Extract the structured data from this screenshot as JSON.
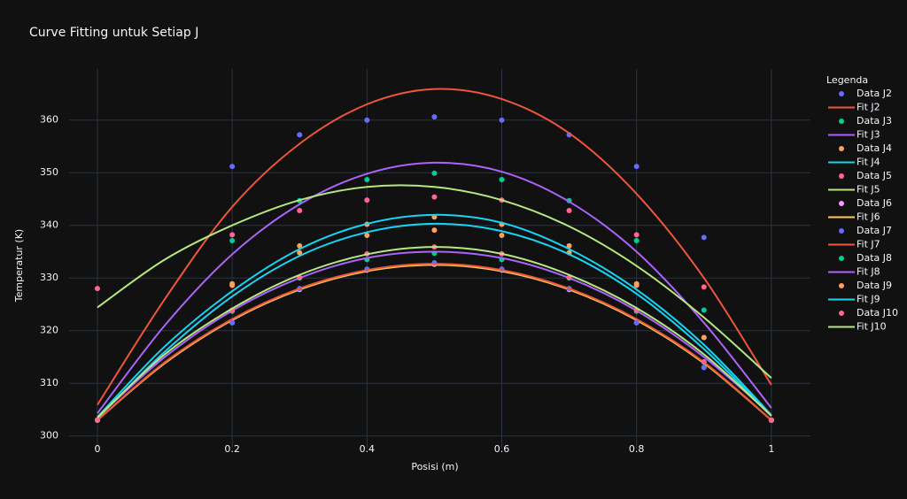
{
  "chart_data": {
    "type": "scatter",
    "title": "Curve Fitting untuk Setiap J",
    "x_label": "Posisi (m)",
    "y_label": "Temperatur (K)",
    "legend_title": "Legenda",
    "xlim": [
      -0.042,
      1.058
    ],
    "ylim": [
      297.6,
      369.7
    ],
    "xticks": [
      0,
      0.2,
      0.4,
      0.6,
      0.8,
      1
    ],
    "yticks": [
      300,
      310,
      320,
      330,
      340,
      350,
      360
    ],
    "grid": true,
    "legend": "right",
    "series": [
      {
        "name": "Data J2",
        "mode": "markers",
        "color": "#636efa",
        "x": [
          0,
          0.2,
          0.3,
          0.4,
          0.5,
          0.6,
          0.7,
          0.8,
          0.9,
          1
        ],
        "values": [
          303,
          351.2,
          357.2,
          360,
          360.6,
          360,
          357.2,
          351.2,
          337.7,
          303
        ]
      },
      {
        "name": "Fit J2",
        "mode": "lines",
        "color": "#EF553B",
        "x": [
          0,
          0.1,
          0.2,
          0.3,
          0.4,
          0.5,
          0.6,
          0.7,
          0.8,
          0.9,
          1
        ],
        "values": [
          305.9,
          326,
          343.5,
          355.5,
          363,
          365.9,
          364,
          357.5,
          346,
          330,
          309.7
        ]
      },
      {
        "name": "Data J3",
        "mode": "markers",
        "color": "#00cc96",
        "x": [
          0,
          0.2,
          0.3,
          0.4,
          0.5,
          0.6,
          0.7,
          0.8,
          0.9,
          1
        ],
        "values": [
          303,
          337.1,
          344.7,
          348.7,
          349.9,
          348.7,
          344.7,
          337.1,
          323.9,
          303
        ]
      },
      {
        "name": "Fit J3",
        "mode": "lines",
        "color": "#ab63fa",
        "x": [
          0,
          0.1,
          0.2,
          0.3,
          0.4,
          0.5,
          0.6,
          0.7,
          0.8,
          0.9,
          1
        ],
        "values": [
          304.3,
          321,
          334.5,
          344,
          349.8,
          351.9,
          350.2,
          344.5,
          335,
          321.5,
          305.3
        ]
      },
      {
        "name": "Data J4",
        "mode": "markers",
        "color": "#FFA15A",
        "x": [
          0,
          0.2,
          0.3,
          0.4,
          0.5,
          0.6,
          0.7,
          0.8,
          0.9,
          1
        ],
        "values": [
          303,
          328.9,
          336.1,
          340.2,
          341.6,
          340.2,
          336.1,
          328.9,
          318.7,
          303
        ]
      },
      {
        "name": "Fit J4",
        "mode": "lines",
        "color": "#19d3f3",
        "x": [
          0,
          0.1,
          0.2,
          0.3,
          0.4,
          0.5,
          0.6,
          0.7,
          0.8,
          0.9,
          1
        ],
        "values": [
          303.6,
          317,
          327.5,
          335.5,
          340.3,
          342,
          340.5,
          335.5,
          327.8,
          317.3,
          304
        ]
      },
      {
        "name": "Data J5",
        "mode": "markers",
        "color": "#FF6692",
        "x": [
          0,
          0.2,
          0.3,
          0.4,
          0.5,
          0.6,
          0.7,
          0.8,
          0.9,
          1
        ],
        "values": [
          328,
          338.2,
          342.8,
          344.8,
          345.4,
          344.8,
          342.8,
          338.2,
          328.3,
          303
        ]
      },
      {
        "name": "Fit J5",
        "mode": "lines",
        "color": "#B6E880",
        "x": [
          0,
          0.1,
          0.2,
          0.3,
          0.4,
          0.5,
          0.6,
          0.7,
          0.8,
          0.9,
          1
        ],
        "values": [
          324.4,
          333.5,
          340,
          344.8,
          347.3,
          347.3,
          344.8,
          339.8,
          332.3,
          322.5,
          311
        ]
      },
      {
        "name": "Data J6",
        "mode": "markers",
        "color": "#FF97FF",
        "x": [
          0,
          0.2,
          0.3,
          0.4,
          0.5,
          0.6,
          0.7,
          0.8,
          0.9,
          1
        ],
        "values": [
          303,
          321.5,
          327.8,
          331.5,
          332.6,
          331.5,
          327.8,
          321.5,
          313,
          303
        ]
      },
      {
        "name": "Fit J6",
        "mode": "lines",
        "color": "#FECB52",
        "x": [
          0,
          0.1,
          0.2,
          0.3,
          0.4,
          0.5,
          0.6,
          0.7,
          0.8,
          0.9,
          1
        ],
        "values": [
          303,
          313.8,
          322,
          327.8,
          331.3,
          332.5,
          331.3,
          327.8,
          322,
          313.8,
          303
        ]
      },
      {
        "name": "Data J7",
        "mode": "markers",
        "color": "#636efa",
        "x": [
          0,
          0.2,
          0.3,
          0.4,
          0.5,
          0.6,
          0.7,
          0.8,
          0.9,
          1
        ],
        "values": [
          303,
          321.5,
          328,
          331.7,
          332.9,
          331.7,
          328,
          321.5,
          313,
          303
        ]
      },
      {
        "name": "Fit J7",
        "mode": "lines",
        "color": "#EF553B",
        "x": [
          0,
          0.1,
          0.2,
          0.3,
          0.4,
          0.5,
          0.6,
          0.7,
          0.8,
          0.9,
          1
        ],
        "values": [
          303,
          314,
          322.2,
          328,
          331.5,
          332.7,
          331.5,
          328,
          322.2,
          314,
          303
        ]
      },
      {
        "name": "Data J8",
        "mode": "markers",
        "color": "#00cc96",
        "x": [
          0,
          0.2,
          0.3,
          0.4,
          0.5,
          0.6,
          0.7,
          0.8,
          0.9,
          1
        ],
        "values": [
          303,
          323.7,
          330,
          333.5,
          334.7,
          333.5,
          330,
          323.7,
          314,
          303
        ]
      },
      {
        "name": "Fit J8",
        "mode": "lines",
        "color": "#ab63fa",
        "x": [
          0,
          0.1,
          0.2,
          0.3,
          0.4,
          0.5,
          0.6,
          0.7,
          0.8,
          0.9,
          1
        ],
        "values": [
          303.5,
          315,
          323.8,
          330,
          333.8,
          335,
          333.8,
          330,
          323.8,
          315,
          304
        ]
      },
      {
        "name": "Data J9",
        "mode": "markers",
        "color": "#FFA15A",
        "x": [
          0,
          0.2,
          0.3,
          0.4,
          0.5,
          0.6,
          0.7,
          0.8,
          0.9,
          1
        ],
        "values": [
          303,
          328.6,
          334.8,
          338.1,
          339.1,
          338.1,
          334.8,
          328.6,
          318.7,
          303
        ]
      },
      {
        "name": "Fit J9",
        "mode": "lines",
        "color": "#19d3f3",
        "x": [
          0,
          0.1,
          0.2,
          0.3,
          0.4,
          0.5,
          0.6,
          0.7,
          0.8,
          0.9,
          1
        ],
        "values": [
          303.3,
          316,
          326.5,
          334.2,
          338.7,
          340.3,
          338.9,
          334.5,
          327,
          316.5,
          303.8
        ]
      },
      {
        "name": "Data J10",
        "mode": "markers",
        "color": "#FF6692",
        "x": [
          0,
          0.2,
          0.3,
          0.4,
          0.5,
          0.6,
          0.7,
          0.8,
          0.9,
          1
        ],
        "values": [
          303,
          323.9,
          330.1,
          334.6,
          335.9,
          334.6,
          330.1,
          323.9,
          314.1,
          303
        ]
      },
      {
        "name": "Fit J10",
        "mode": "lines",
        "color": "#B6E880",
        "x": [
          0,
          0.1,
          0.2,
          0.3,
          0.4,
          0.5,
          0.6,
          0.7,
          0.8,
          0.9,
          1
        ],
        "values": [
          303.5,
          315.5,
          324.2,
          330.6,
          334.5,
          335.9,
          334.6,
          330.6,
          324.3,
          315.5,
          303.8
        ]
      }
    ]
  }
}
